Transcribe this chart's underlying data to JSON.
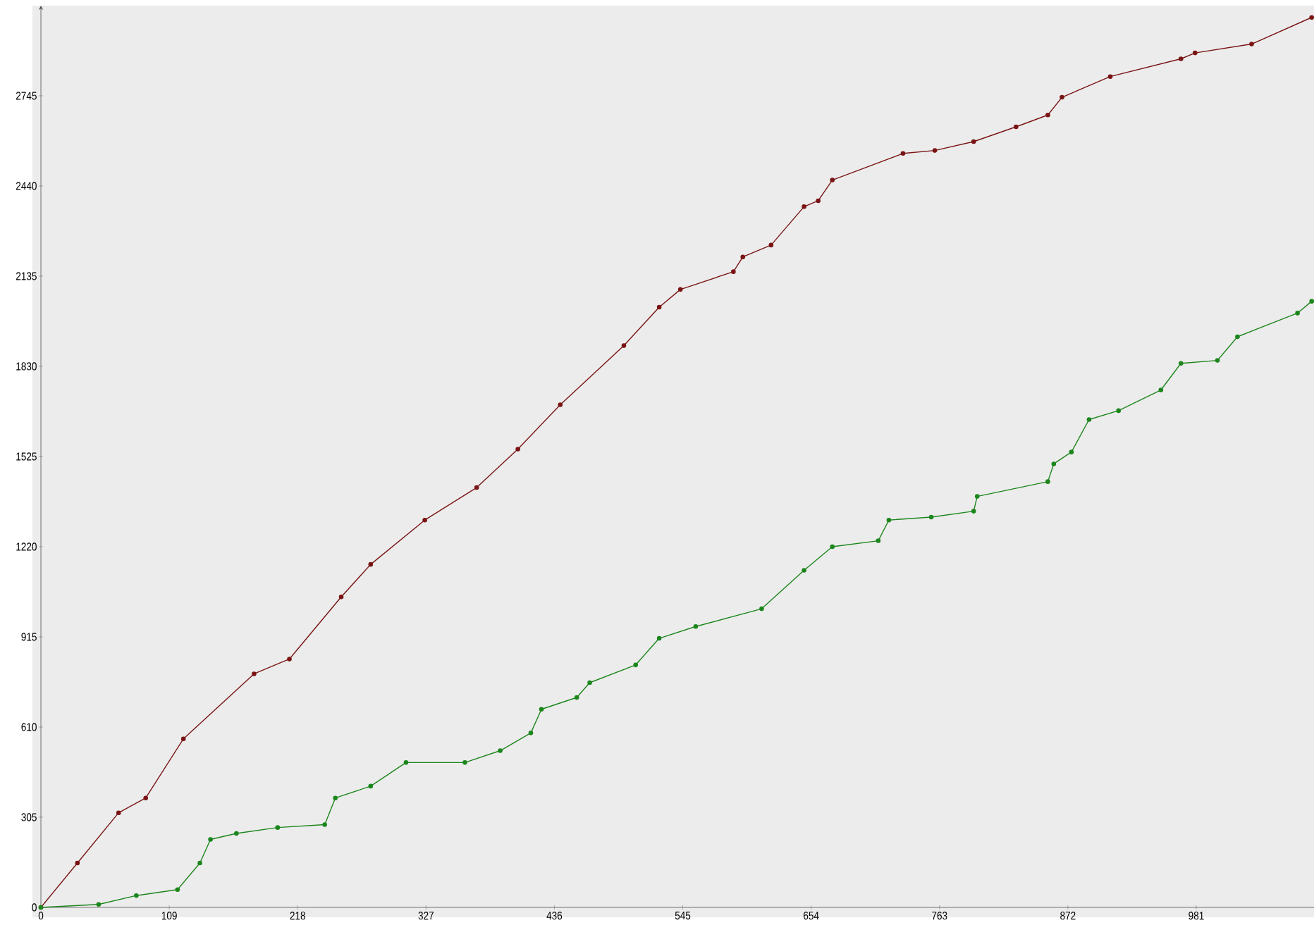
{
  "chart_data": {
    "type": "line",
    "xlim": [
      0,
      1081
    ],
    "ylim": [
      0,
      3050
    ],
    "xticks": [
      0,
      109,
      218,
      327,
      436,
      545,
      654,
      763,
      872,
      981
    ],
    "yticks": [
      0,
      305,
      610,
      915,
      1220,
      1525,
      1830,
      2135,
      2440,
      2745
    ],
    "marker": "circle",
    "line_style": "solid",
    "series": [
      {
        "color": "#7a1414",
        "x": [
          0,
          31,
          66,
          89,
          121,
          181,
          211,
          255,
          280,
          326,
          370,
          405,
          441,
          495,
          525,
          543,
          588,
          596,
          620,
          648,
          660,
          672,
          732,
          759,
          792,
          828,
          855,
          867,
          908,
          968,
          980,
          1028,
          1079
        ],
        "values": [
          0,
          150,
          320,
          370,
          570,
          790,
          840,
          1050,
          1160,
          1310,
          1420,
          1550,
          1700,
          1900,
          2030,
          2090,
          2150,
          2200,
          2240,
          2370,
          2390,
          2460,
          2550,
          2560,
          2590,
          2640,
          2680,
          2740,
          2810,
          2870,
          2890,
          2920,
          3010
        ]
      },
      {
        "color": "#1c861c",
        "x": [
          0,
          49,
          81,
          116,
          135,
          144,
          166,
          201,
          241,
          250,
          280,
          310,
          360,
          390,
          416,
          425,
          455,
          466,
          505,
          525,
          556,
          612,
          648,
          672,
          711,
          720,
          756,
          792,
          795,
          855,
          860,
          875,
          890,
          915,
          951,
          968,
          999,
          1016,
          1067,
          1079
        ],
        "values": [
          0,
          10,
          40,
          60,
          150,
          230,
          250,
          270,
          280,
          370,
          410,
          490,
          490,
          530,
          590,
          670,
          710,
          760,
          820,
          910,
          950,
          1010,
          1140,
          1220,
          1240,
          1310,
          1320,
          1340,
          1390,
          1440,
          1500,
          1540,
          1650,
          1680,
          1750,
          1840,
          1850,
          1930,
          2010,
          2050
        ]
      }
    ]
  }
}
